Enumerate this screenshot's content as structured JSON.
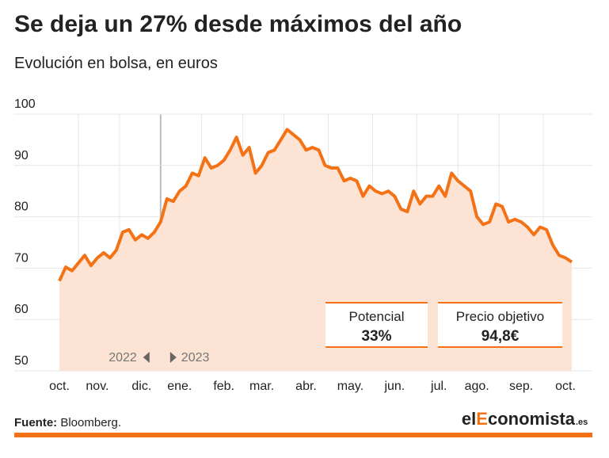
{
  "chart_data": {
    "type": "area",
    "title": "Se deja un 27% desde máximos del año",
    "subtitle": "Evolución en bolsa, en euros",
    "categories": [
      "oct.",
      null,
      null,
      null,
      null,
      null,
      "nov.",
      null,
      null,
      null,
      null,
      null,
      null,
      "dic.",
      null,
      null,
      null,
      null,
      null,
      "ene.",
      null,
      null,
      null,
      null,
      null,
      null,
      "feb.",
      null,
      null,
      null,
      null,
      null,
      "mar.",
      null,
      null,
      null,
      null,
      null,
      null,
      "abr.",
      null,
      null,
      null,
      null,
      null,
      null,
      "may.",
      null,
      null,
      null,
      null,
      null,
      null,
      "jun.",
      null,
      null,
      null,
      null,
      null,
      null,
      "jul.",
      null,
      null,
      null,
      null,
      null,
      "ago.",
      null,
      null,
      null,
      null,
      null,
      null,
      "sep.",
      null,
      null,
      null,
      null,
      null,
      null,
      "oct.",
      null
    ],
    "values": [
      67.5,
      70.2,
      69.5,
      71,
      72.5,
      70.5,
      72,
      73,
      72,
      73.5,
      77,
      77.5,
      75.5,
      76.5,
      75.8,
      77,
      79,
      83.5,
      83,
      85,
      86,
      88.5,
      88,
      91.5,
      89.5,
      90,
      91,
      93,
      95.5,
      92,
      93.5,
      88.5,
      90,
      92.5,
      93,
      95,
      97,
      96,
      95,
      93,
      93.5,
      93,
      90,
      89.5,
      89.5,
      87,
      87.5,
      87,
      84,
      86,
      85,
      84.5,
      85,
      84,
      81.5,
      81,
      85,
      82.5,
      84,
      84,
      86,
      84,
      88.5,
      87,
      86,
      85,
      80,
      78.5,
      79,
      82.5,
      82,
      79,
      79.5,
      79,
      78,
      76.5,
      78,
      77.5,
      74.5,
      72.5,
      72,
      71.2
    ],
    "color": "#f47216",
    "fill": "#fde3d3",
    "ylim": [
      50,
      100
    ],
    "yticks": [
      50,
      60,
      70,
      80,
      90,
      100
    ],
    "grid": true,
    "year_labels": [
      "2022",
      "2023"
    ],
    "boxes": [
      {
        "label": "Potencial",
        "value": "33%"
      },
      {
        "label": "Precio objetivo",
        "value": "94,8€"
      }
    ]
  },
  "footer": {
    "source_label": "Fuente:",
    "source": "Bloomberg.",
    "logo": [
      "el",
      "E",
      "conomista",
      ".es"
    ]
  }
}
